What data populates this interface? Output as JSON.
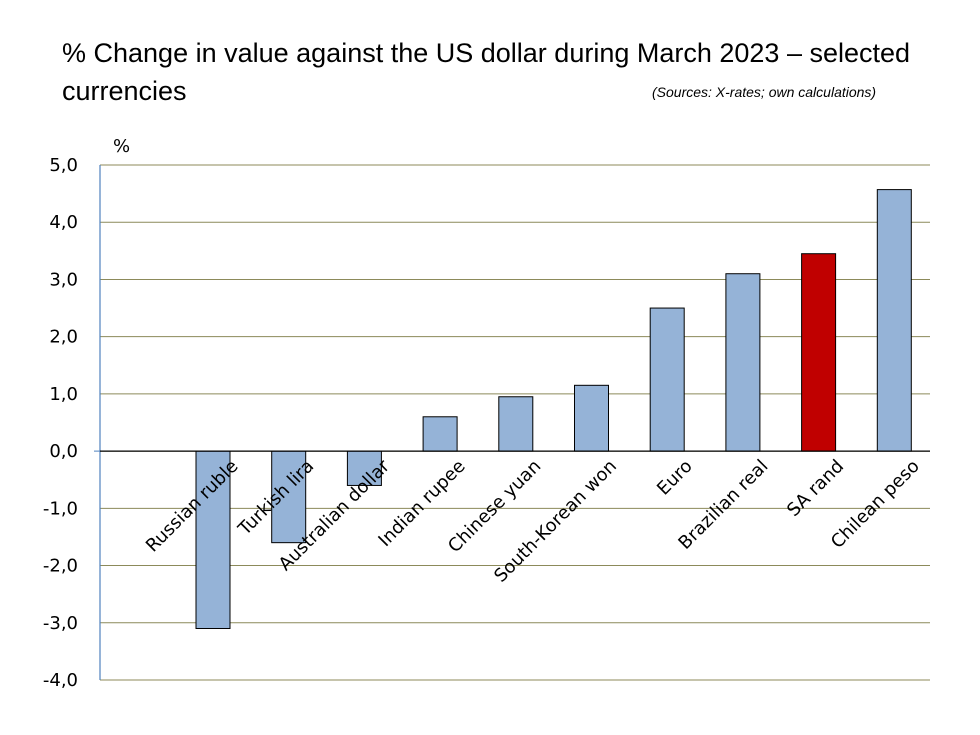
{
  "chart_data": {
    "type": "bar",
    "title": "% Change in value against the US dollar during March 2023 – selected currencies",
    "subtitle": "(Sources: X-rates; own calculations)",
    "ylabel": "%",
    "xlabel": "",
    "ylim": [
      -4.0,
      5.0
    ],
    "yticks": [
      "5,0",
      "4,0",
      "3,0",
      "2,0",
      "1,0",
      "0,0",
      "-1,0",
      "-2,0",
      "-3,0",
      "-4,0"
    ],
    "ytick_values": [
      5,
      4,
      3,
      2,
      1,
      0,
      -1,
      -2,
      -3,
      -4
    ],
    "grid": true,
    "categories": [
      "Russian ruble",
      "Turkish lira",
      "Australian dollar",
      "Indian rupee",
      "Chinese yuan",
      "South-Korean won",
      "Euro",
      "Brazilian real",
      "SA rand",
      "Chilean peso"
    ],
    "values": [
      -3.1,
      -1.6,
      -0.6,
      0.6,
      0.95,
      1.15,
      2.5,
      3.1,
      3.45,
      4.57
    ],
    "colors": {
      "default": "#95b3d7",
      "highlight": "#c00000",
      "highlight_category": "SA rand",
      "gridline": "#8c8a5a",
      "axis": "#4f81bd"
    }
  }
}
